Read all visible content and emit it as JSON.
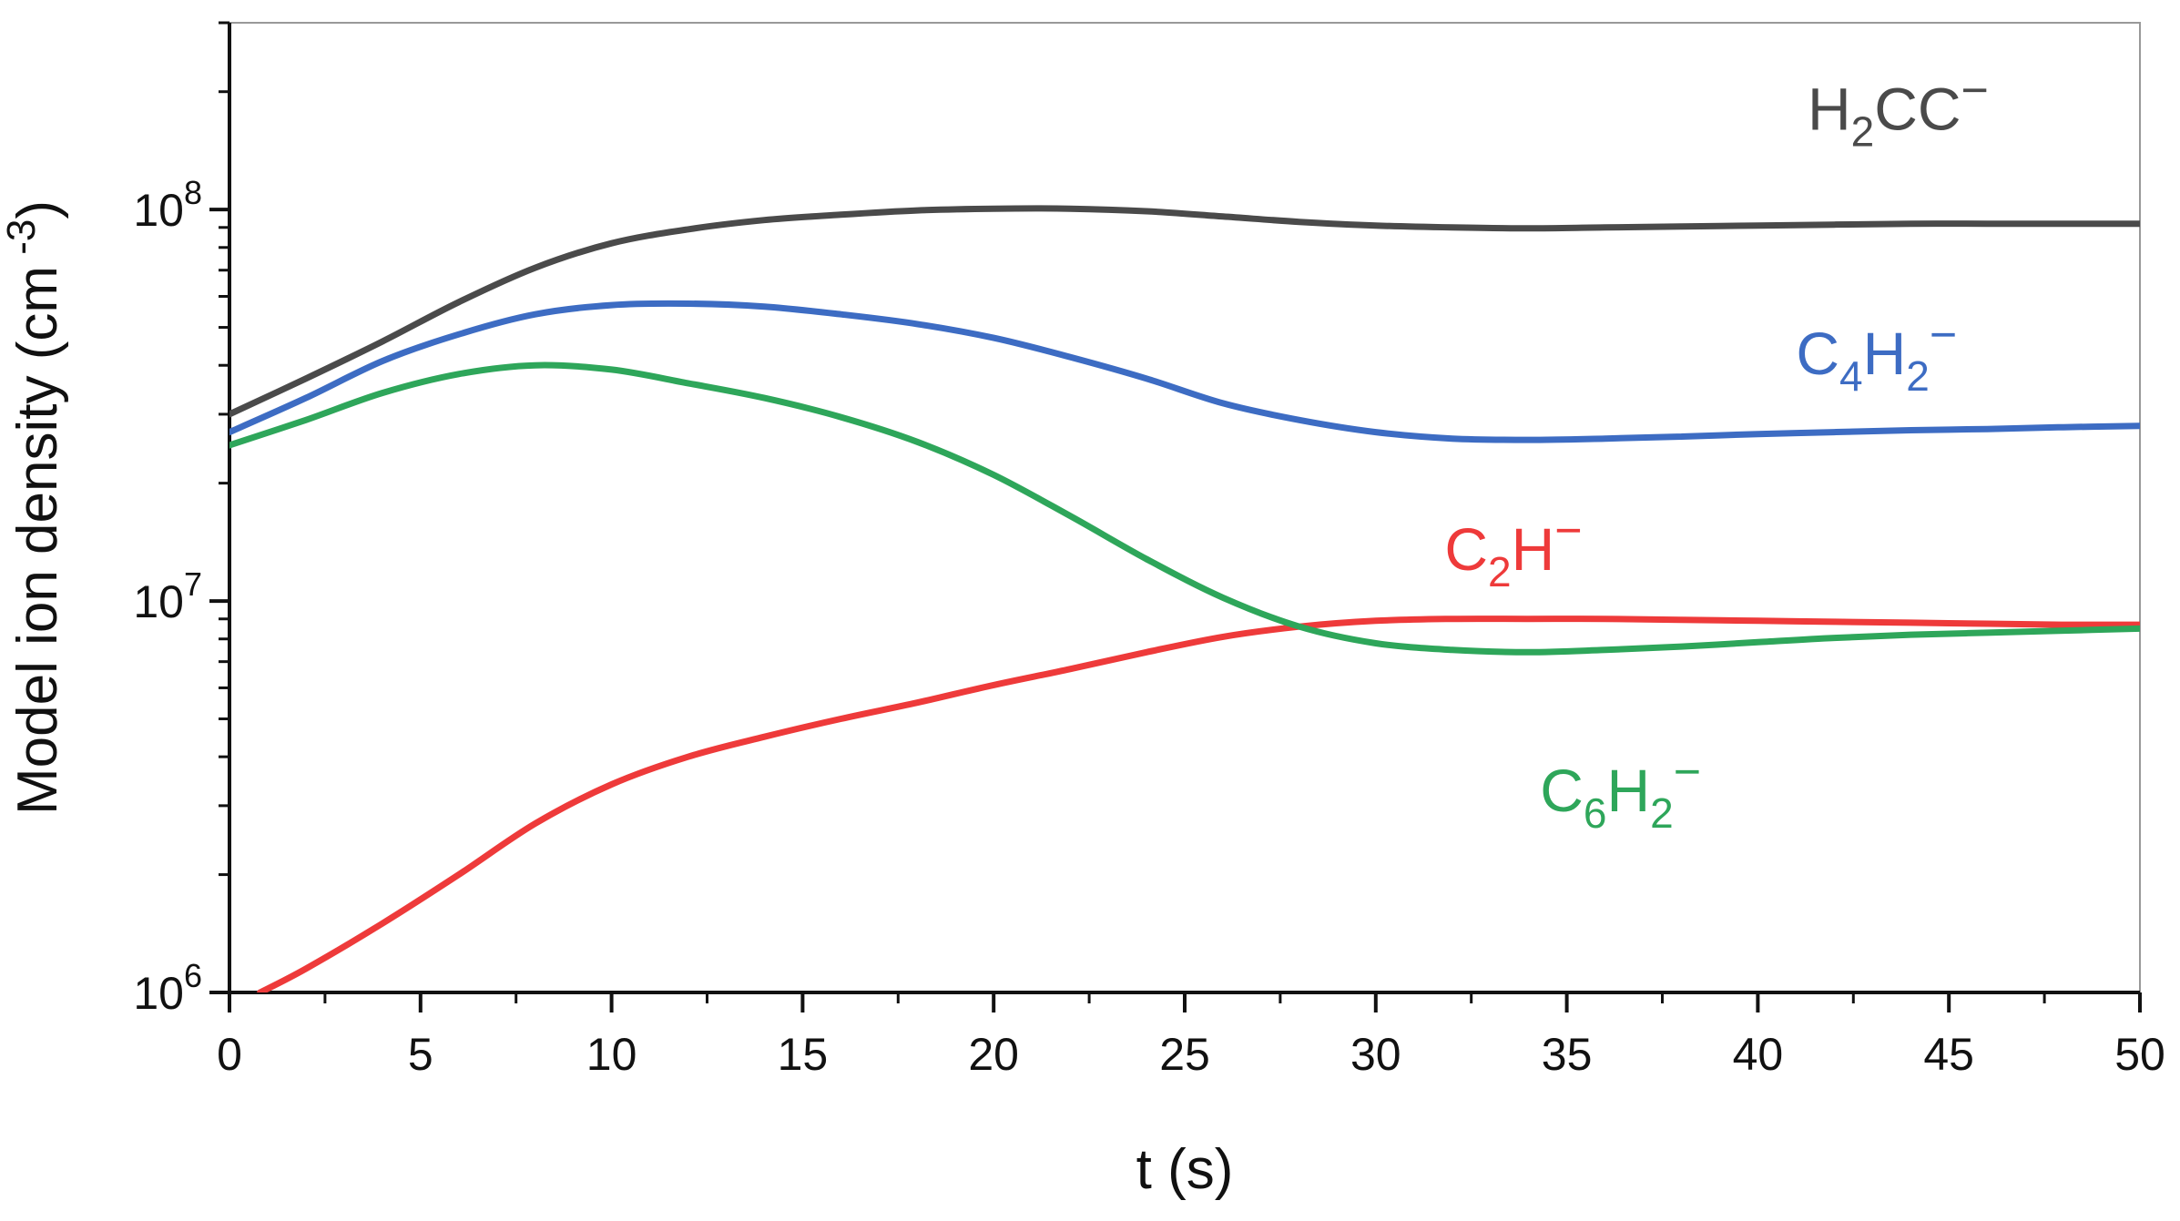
{
  "chart_data": {
    "type": "line",
    "title": "",
    "xlabel": "t (s)",
    "ylabel": "Model ion density (cm",
    "ylabel_exponent": "-3",
    "ylabel_close": ")",
    "yscale": "log",
    "xlim": [
      0,
      50
    ],
    "ylim": [
      1000000,
      300000000
    ],
    "grid": false,
    "x_ticks": [
      0,
      5,
      10,
      15,
      20,
      25,
      30,
      35,
      40,
      45,
      50
    ],
    "x_tick_labels": [
      "0",
      "5",
      "10",
      "15",
      "20",
      "25",
      "30",
      "35",
      "40",
      "45",
      "50"
    ],
    "y_ticks": [
      {
        "value": 1000000,
        "base": "10",
        "exponent": "6"
      },
      {
        "value": 10000000,
        "base": "10",
        "exponent": "7"
      },
      {
        "value": 100000000,
        "base": "10",
        "exponent": "8"
      }
    ],
    "series": [
      {
        "name": "H2CC-",
        "color": "#4a4a4a",
        "label_parts": [
          {
            "text": "H",
            "kind": "normal"
          },
          {
            "text": "2",
            "kind": "sub"
          },
          {
            "text": "CC",
            "kind": "normal"
          },
          {
            "text": "−",
            "kind": "sup"
          }
        ],
        "label_anchor": [
          41.3,
          160000000
        ],
        "x": [
          0,
          2,
          4,
          6,
          8,
          10,
          12,
          14,
          16,
          18,
          20,
          22,
          24,
          26,
          28,
          30,
          32,
          34,
          36,
          38,
          40,
          42,
          44,
          46,
          48,
          50
        ],
        "values": [
          30000000,
          37000000,
          46000000,
          58000000,
          71000000,
          82000000,
          89000000,
          94000000,
          97000000,
          99500000,
          100500000,
          100500000,
          99000000,
          96000000,
          93000000,
          91000000,
          90000000,
          89500000,
          90000000,
          90500000,
          91000000,
          91500000,
          92000000,
          92000000,
          92000000,
          92000000
        ]
      },
      {
        "name": "C4H2-",
        "color": "#3d6cc3",
        "label_parts": [
          {
            "text": "C",
            "kind": "normal"
          },
          {
            "text": "4",
            "kind": "sub"
          },
          {
            "text": "H",
            "kind": "normal"
          },
          {
            "text": "2",
            "kind": "sub"
          },
          {
            "text": "−",
            "kind": "sup"
          }
        ],
        "label_anchor": [
          41.0,
          38000000
        ],
        "x": [
          0,
          2,
          4,
          6,
          8,
          10,
          12,
          14,
          16,
          18,
          20,
          22,
          24,
          26,
          28,
          30,
          32,
          34,
          36,
          38,
          40,
          42,
          44,
          46,
          48,
          50
        ],
        "values": [
          27000000,
          33000000,
          41000000,
          48000000,
          54000000,
          57000000,
          57500000,
          56500000,
          54000000,
          51000000,
          47000000,
          42000000,
          37000000,
          32000000,
          29000000,
          27000000,
          26000000,
          25800000,
          26000000,
          26300000,
          26700000,
          27000000,
          27300000,
          27500000,
          27800000,
          28000000
        ]
      },
      {
        "name": "C2H-",
        "color": "#ee3a3a",
        "label_parts": [
          {
            "text": "C",
            "kind": "normal"
          },
          {
            "text": "2",
            "kind": "sub"
          },
          {
            "text": "H",
            "kind": "normal"
          },
          {
            "text": "−",
            "kind": "sup"
          }
        ],
        "label_anchor": [
          31.8,
          12000000
        ],
        "x": [
          0.8,
          2,
          4,
          6,
          8,
          10,
          12,
          14,
          16,
          18,
          20,
          22,
          24,
          26,
          28,
          30,
          32,
          34,
          36,
          38,
          40,
          42,
          44,
          46,
          48,
          50
        ],
        "values": [
          1000000,
          1150000,
          1500000,
          2000000,
          2700000,
          3400000,
          4000000,
          4500000,
          5000000,
          5500000,
          6100000,
          6700000,
          7400000,
          8100000,
          8600000,
          8900000,
          9000000,
          9000000,
          9000000,
          8950000,
          8900000,
          8850000,
          8800000,
          8750000,
          8700000,
          8700000
        ]
      },
      {
        "name": "C6H2-",
        "color": "#2ea65a",
        "label_parts": [
          {
            "text": "C",
            "kind": "normal"
          },
          {
            "text": "6",
            "kind": "sub"
          },
          {
            "text": "H",
            "kind": "normal"
          },
          {
            "text": "2",
            "kind": "sub"
          },
          {
            "text": "−",
            "kind": "sup"
          }
        ],
        "label_anchor": [
          34.3,
          2900000
        ],
        "x": [
          0,
          2,
          4,
          6,
          8,
          10,
          12,
          14,
          16,
          18,
          20,
          22,
          24,
          26,
          28,
          30,
          32,
          34,
          36,
          38,
          40,
          42,
          44,
          46,
          48,
          50
        ],
        "values": [
          25000000,
          29000000,
          34000000,
          38000000,
          40000000,
          39000000,
          36000000,
          33000000,
          29500000,
          25500000,
          21000000,
          16500000,
          12800000,
          10200000,
          8600000,
          7800000,
          7500000,
          7400000,
          7500000,
          7650000,
          7850000,
          8050000,
          8200000,
          8300000,
          8400000,
          8500000
        ]
      }
    ]
  }
}
